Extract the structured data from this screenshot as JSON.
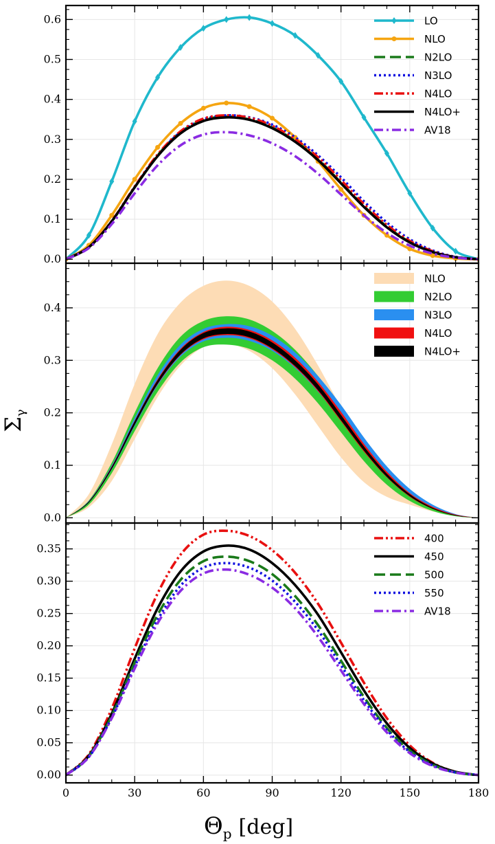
{
  "figure": {
    "xlabel_sym": "Θ",
    "xlabel_sub": "p",
    "xlabel_unit": "[deg]",
    "ylabel_sym": "Σ",
    "ylabel_sub": "γ"
  },
  "chart_data": [
    {
      "type": "line",
      "panel": "top",
      "xlim": [
        0,
        180
      ],
      "ylim": [
        -0.01,
        0.635
      ],
      "grid": true,
      "legend": "top-right",
      "x_ticks": [
        0,
        30,
        60,
        90,
        120,
        150,
        180
      ],
      "y_ticks": [
        0.0,
        0.1,
        0.2,
        0.3,
        0.4,
        0.5,
        0.6
      ],
      "y_tick_labels": [
        "0.0",
        "0.1",
        "0.2",
        "0.3",
        "0.4",
        "0.5",
        "0.6"
      ],
      "series": [
        {
          "name": "LO",
          "color": "#1fb8cc",
          "style": "solid",
          "marker": "diamond",
          "x": [
            0,
            10,
            20,
            30,
            40,
            50,
            60,
            70,
            80,
            90,
            100,
            110,
            120,
            130,
            140,
            150,
            160,
            170,
            180
          ],
          "y": [
            0.0,
            0.06,
            0.195,
            0.345,
            0.455,
            0.53,
            0.578,
            0.6,
            0.605,
            0.59,
            0.56,
            0.51,
            0.445,
            0.355,
            0.265,
            0.165,
            0.078,
            0.02,
            0.0
          ]
        },
        {
          "name": "NLO",
          "color": "#f5a511",
          "style": "solid",
          "marker": "circle",
          "x": [
            0,
            10,
            20,
            30,
            40,
            50,
            60,
            70,
            80,
            90,
            100,
            110,
            120,
            130,
            140,
            150,
            160,
            170,
            180
          ],
          "y": [
            0.0,
            0.035,
            0.11,
            0.2,
            0.28,
            0.34,
            0.378,
            0.391,
            0.382,
            0.353,
            0.305,
            0.245,
            0.175,
            0.11,
            0.06,
            0.026,
            0.009,
            0.002,
            0.0
          ]
        },
        {
          "name": "N2LO",
          "color": "#1a7a1a",
          "style": "dashed",
          "x": [
            0,
            10,
            20,
            30,
            40,
            50,
            60,
            70,
            80,
            90,
            100,
            110,
            120,
            130,
            140,
            150,
            160,
            170,
            180
          ],
          "y": [
            0.0,
            0.03,
            0.095,
            0.18,
            0.26,
            0.318,
            0.348,
            0.357,
            0.35,
            0.33,
            0.296,
            0.25,
            0.192,
            0.133,
            0.082,
            0.043,
            0.018,
            0.005,
            0.0
          ]
        },
        {
          "name": "N3LO",
          "color": "#1010e0",
          "style": "dotted",
          "x": [
            0,
            10,
            20,
            30,
            40,
            50,
            60,
            70,
            80,
            90,
            100,
            110,
            120,
            130,
            140,
            150,
            160,
            170,
            180
          ],
          "y": [
            0.0,
            0.03,
            0.095,
            0.18,
            0.26,
            0.318,
            0.35,
            0.36,
            0.355,
            0.337,
            0.305,
            0.26,
            0.205,
            0.145,
            0.092,
            0.05,
            0.022,
            0.006,
            0.0
          ]
        },
        {
          "name": "N4LO",
          "color": "#e81010",
          "style": "dashdotdot",
          "x": [
            0,
            10,
            20,
            30,
            40,
            50,
            60,
            70,
            80,
            90,
            100,
            110,
            120,
            130,
            140,
            150,
            160,
            170,
            180
          ],
          "y": [
            0.0,
            0.03,
            0.096,
            0.182,
            0.262,
            0.32,
            0.352,
            0.36,
            0.354,
            0.334,
            0.3,
            0.255,
            0.198,
            0.138,
            0.086,
            0.046,
            0.02,
            0.005,
            0.0
          ]
        },
        {
          "name": "N4LO+",
          "color": "#000000",
          "style": "solid",
          "x": [
            0,
            10,
            20,
            30,
            40,
            50,
            60,
            70,
            80,
            90,
            100,
            110,
            120,
            130,
            140,
            150,
            160,
            170,
            180
          ],
          "y": [
            0.0,
            0.03,
            0.095,
            0.18,
            0.258,
            0.315,
            0.346,
            0.355,
            0.349,
            0.328,
            0.294,
            0.248,
            0.19,
            0.131,
            0.08,
            0.042,
            0.018,
            0.005,
            0.0
          ]
        },
        {
          "name": "AV18",
          "color": "#8a2be2",
          "style": "dashdot",
          "x": [
            0,
            10,
            20,
            30,
            40,
            50,
            60,
            70,
            80,
            90,
            100,
            110,
            120,
            130,
            140,
            150,
            160,
            170,
            180
          ],
          "y": [
            0.0,
            0.028,
            0.088,
            0.165,
            0.235,
            0.285,
            0.312,
            0.318,
            0.31,
            0.29,
            0.258,
            0.214,
            0.162,
            0.11,
            0.066,
            0.034,
            0.014,
            0.004,
            0.0
          ]
        }
      ]
    },
    {
      "type": "area",
      "panel": "middle",
      "xlim": [
        0,
        180
      ],
      "ylim": [
        -0.01,
        0.485
      ],
      "grid": true,
      "legend": "top-right",
      "x_ticks": [
        0,
        30,
        60,
        90,
        120,
        150,
        180
      ],
      "y_ticks": [
        0.0,
        0.1,
        0.2,
        0.3,
        0.4
      ],
      "y_tick_labels": [
        "0.0",
        "0.1",
        "0.2",
        "0.3",
        "0.4"
      ],
      "x": [
        0,
        10,
        20,
        30,
        40,
        50,
        60,
        70,
        80,
        90,
        100,
        110,
        120,
        130,
        140,
        150,
        160,
        170,
        180
      ],
      "series": [
        {
          "name": "NLO",
          "color": "#fddcb5",
          "lower": [
            0.0,
            0.02,
            0.07,
            0.15,
            0.23,
            0.29,
            0.325,
            0.332,
            0.318,
            0.285,
            0.235,
            0.175,
            0.115,
            0.068,
            0.04,
            0.025,
            0.012,
            0.003,
            0.0
          ],
          "upper": [
            0.0,
            0.045,
            0.14,
            0.255,
            0.35,
            0.41,
            0.442,
            0.452,
            0.442,
            0.412,
            0.36,
            0.29,
            0.21,
            0.135,
            0.075,
            0.035,
            0.013,
            0.003,
            0.0
          ]
        },
        {
          "name": "N2LO",
          "color": "#33cc33",
          "lower": [
            0.0,
            0.025,
            0.085,
            0.165,
            0.24,
            0.296,
            0.325,
            0.33,
            0.322,
            0.3,
            0.265,
            0.218,
            0.163,
            0.108,
            0.063,
            0.032,
            0.013,
            0.003,
            0.0
          ],
          "upper": [
            0.0,
            0.033,
            0.105,
            0.2,
            0.285,
            0.345,
            0.375,
            0.384,
            0.378,
            0.356,
            0.32,
            0.27,
            0.21,
            0.147,
            0.092,
            0.05,
            0.022,
            0.006,
            0.0
          ]
        },
        {
          "name": "N3LO",
          "color": "#2a8ff0",
          "lower": [
            0.0,
            0.029,
            0.092,
            0.175,
            0.252,
            0.307,
            0.336,
            0.343,
            0.337,
            0.318,
            0.285,
            0.24,
            0.185,
            0.128,
            0.079,
            0.042,
            0.018,
            0.005,
            0.0
          ],
          "upper": [
            0.0,
            0.032,
            0.1,
            0.19,
            0.272,
            0.33,
            0.36,
            0.369,
            0.365,
            0.347,
            0.315,
            0.27,
            0.215,
            0.153,
            0.098,
            0.055,
            0.025,
            0.007,
            0.0
          ]
        },
        {
          "name": "N4LO",
          "color": "#f01010",
          "lower": [
            0.0,
            0.029,
            0.093,
            0.177,
            0.254,
            0.31,
            0.34,
            0.348,
            0.342,
            0.321,
            0.287,
            0.241,
            0.184,
            0.126,
            0.077,
            0.04,
            0.017,
            0.004,
            0.0
          ],
          "upper": [
            0.0,
            0.031,
            0.098,
            0.185,
            0.264,
            0.322,
            0.354,
            0.364,
            0.358,
            0.338,
            0.305,
            0.259,
            0.202,
            0.141,
            0.088,
            0.047,
            0.021,
            0.006,
            0.0
          ]
        },
        {
          "name": "N4LO+",
          "color": "#000000",
          "lower": [
            0.0,
            0.029,
            0.093,
            0.177,
            0.255,
            0.311,
            0.342,
            0.35,
            0.344,
            0.323,
            0.289,
            0.243,
            0.186,
            0.128,
            0.078,
            0.041,
            0.017,
            0.004,
            0.0
          ],
          "upper": [
            0.0,
            0.031,
            0.097,
            0.184,
            0.262,
            0.32,
            0.352,
            0.361,
            0.355,
            0.334,
            0.3,
            0.254,
            0.196,
            0.136,
            0.084,
            0.045,
            0.019,
            0.005,
            0.0
          ]
        }
      ]
    },
    {
      "type": "line",
      "panel": "bottom",
      "xlim": [
        0,
        180
      ],
      "ylim": [
        -0.012,
        0.39
      ],
      "grid": true,
      "legend": "top-right",
      "x_ticks": [
        0,
        30,
        60,
        90,
        120,
        150,
        180
      ],
      "x_tick_labels": [
        "0",
        "30",
        "60",
        "90",
        "120",
        "150",
        "180"
      ],
      "y_ticks": [
        0.0,
        0.05,
        0.1,
        0.15,
        0.2,
        0.25,
        0.3,
        0.35
      ],
      "y_tick_labels": [
        "0.00",
        "0.05",
        "0.10",
        "0.15",
        "0.20",
        "0.25",
        "0.30",
        "0.35"
      ],
      "series": [
        {
          "name": "400",
          "color": "#e81010",
          "style": "dashdotdot",
          "x": [
            0,
            10,
            20,
            30,
            40,
            50,
            60,
            70,
            80,
            90,
            100,
            110,
            120,
            130,
            140,
            150,
            160,
            170,
            180
          ],
          "y": [
            0.0,
            0.032,
            0.103,
            0.196,
            0.281,
            0.341,
            0.372,
            0.378,
            0.37,
            0.348,
            0.313,
            0.265,
            0.205,
            0.143,
            0.088,
            0.046,
            0.019,
            0.005,
            0.0
          ]
        },
        {
          "name": "450",
          "color": "#000000",
          "style": "solid",
          "x": [
            0,
            10,
            20,
            30,
            40,
            50,
            60,
            70,
            80,
            90,
            100,
            110,
            120,
            130,
            140,
            150,
            160,
            170,
            180
          ],
          "y": [
            0.0,
            0.03,
            0.095,
            0.18,
            0.258,
            0.315,
            0.346,
            0.355,
            0.349,
            0.328,
            0.294,
            0.248,
            0.19,
            0.131,
            0.08,
            0.042,
            0.018,
            0.005,
            0.0
          ]
        },
        {
          "name": "500",
          "color": "#1a7a1a",
          "style": "dashed",
          "x": [
            0,
            10,
            20,
            30,
            40,
            50,
            60,
            70,
            80,
            90,
            100,
            110,
            120,
            130,
            140,
            150,
            160,
            170,
            180
          ],
          "y": [
            0.0,
            0.029,
            0.092,
            0.174,
            0.248,
            0.302,
            0.331,
            0.338,
            0.331,
            0.311,
            0.277,
            0.232,
            0.177,
            0.121,
            0.073,
            0.038,
            0.016,
            0.004,
            0.0
          ]
        },
        {
          "name": "550",
          "color": "#1010e0",
          "style": "dotted",
          "x": [
            0,
            10,
            20,
            30,
            40,
            50,
            60,
            70,
            80,
            90,
            100,
            110,
            120,
            130,
            140,
            150,
            160,
            170,
            180
          ],
          "y": [
            0.0,
            0.028,
            0.089,
            0.168,
            0.24,
            0.293,
            0.321,
            0.328,
            0.321,
            0.301,
            0.268,
            0.224,
            0.17,
            0.116,
            0.07,
            0.036,
            0.015,
            0.004,
            0.0
          ]
        },
        {
          "name": "AV18",
          "color": "#8a2be2",
          "style": "dashdot",
          "x": [
            0,
            10,
            20,
            30,
            40,
            50,
            60,
            70,
            80,
            90,
            100,
            110,
            120,
            130,
            140,
            150,
            160,
            170,
            180
          ],
          "y": [
            0.0,
            0.028,
            0.088,
            0.165,
            0.235,
            0.285,
            0.312,
            0.318,
            0.31,
            0.29,
            0.258,
            0.214,
            0.162,
            0.11,
            0.066,
            0.034,
            0.014,
            0.004,
            0.0
          ]
        }
      ]
    }
  ]
}
